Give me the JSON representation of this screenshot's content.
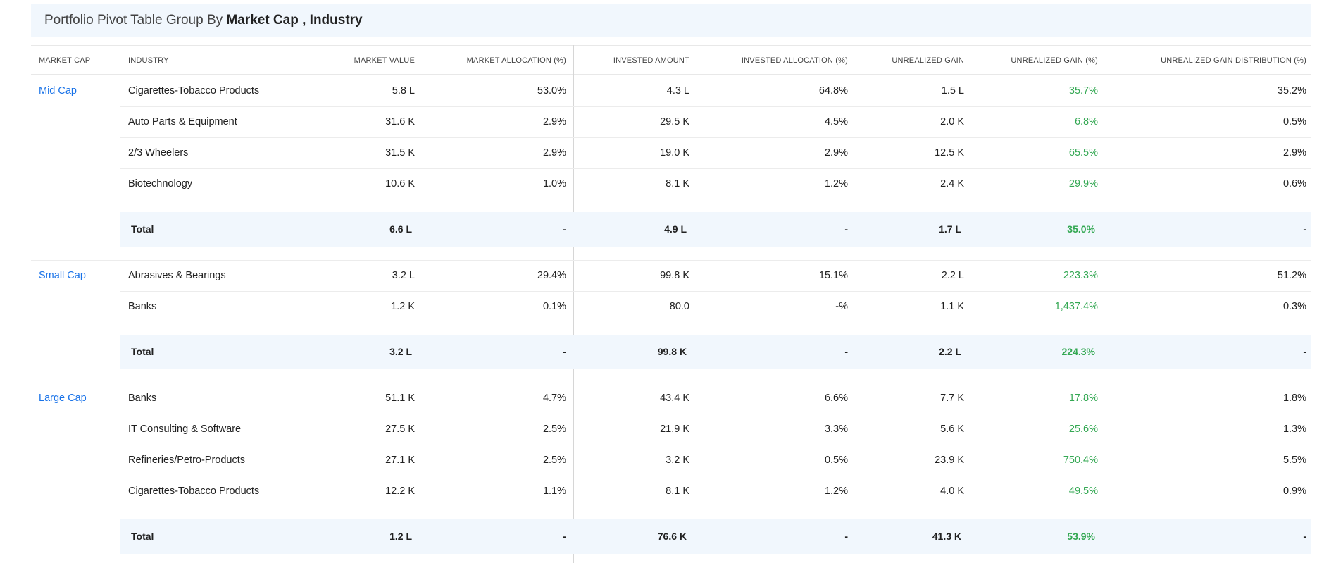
{
  "title": {
    "prefix": "Portfolio Pivot Table Group By",
    "group1": "Market Cap",
    "sep": ",",
    "group2": "Industry"
  },
  "columns": {
    "market_cap": "MARKET CAP",
    "industry": "INDUSTRY",
    "market_value": "MARKET VALUE",
    "market_allocation": "MARKET ALLOCATION (%)",
    "invested_amount": "INVESTED AMOUNT",
    "invested_allocation": "INVESTED ALLOCATION (%)",
    "unrealized_gain": "UNREALIZED GAIN",
    "unrealized_gain_pct": "UNREALIZED GAIN (%)",
    "unrealized_gain_dist": "UNREALIZED GAIN DISTRIBUTION (%)"
  },
  "colors": {
    "link": "#1a73e8",
    "gain": "#34a853",
    "total_bg": "#f1f7fd"
  },
  "groups": [
    {
      "name": "Mid Cap",
      "rows": [
        {
          "industry": "Cigarettes-Tobacco Products",
          "mv": "5.8 L",
          "ma": "53.0%",
          "ia": "4.3 L",
          "ial": "64.8%",
          "ug": "1.5 L",
          "ugp": "35.7%",
          "ugd": "35.2%"
        },
        {
          "industry": "Auto Parts & Equipment",
          "mv": "31.6 K",
          "ma": "2.9%",
          "ia": "29.5 K",
          "ial": "4.5%",
          "ug": "2.0 K",
          "ugp": "6.8%",
          "ugd": "0.5%"
        },
        {
          "industry": "2/3 Wheelers",
          "mv": "31.5 K",
          "ma": "2.9%",
          "ia": "19.0 K",
          "ial": "2.9%",
          "ug": "12.5 K",
          "ugp": "65.5%",
          "ugd": "2.9%"
        },
        {
          "industry": "Biotechnology",
          "mv": "10.6 K",
          "ma": "1.0%",
          "ia": "8.1 K",
          "ial": "1.2%",
          "ug": "2.4 K",
          "ugp": "29.9%",
          "ugd": "0.6%"
        }
      ],
      "total": {
        "label": "Total",
        "mv": "6.6 L",
        "ma": "-",
        "ia": "4.9 L",
        "ial": "-",
        "ug": "1.7 L",
        "ugp": "35.0%",
        "ugd": "-"
      }
    },
    {
      "name": "Small Cap",
      "rows": [
        {
          "industry": "Abrasives & Bearings",
          "mv": "3.2 L",
          "ma": "29.4%",
          "ia": "99.8 K",
          "ial": "15.1%",
          "ug": "2.2 L",
          "ugp": "223.3%",
          "ugd": "51.2%"
        },
        {
          "industry": "Banks",
          "mv": "1.2 K",
          "ma": "0.1%",
          "ia": "80.0",
          "ial": "-%",
          "ug": "1.1 K",
          "ugp": "1,437.4%",
          "ugd": "0.3%"
        }
      ],
      "total": {
        "label": "Total",
        "mv": "3.2 L",
        "ma": "-",
        "ia": "99.8 K",
        "ial": "-",
        "ug": "2.2 L",
        "ugp": "224.3%",
        "ugd": "-"
      }
    },
    {
      "name": "Large Cap",
      "rows": [
        {
          "industry": "Banks",
          "mv": "51.1 K",
          "ma": "4.7%",
          "ia": "43.4 K",
          "ial": "6.6%",
          "ug": "7.7 K",
          "ugp": "17.8%",
          "ugd": "1.8%"
        },
        {
          "industry": "IT Consulting & Software",
          "mv": "27.5 K",
          "ma": "2.5%",
          "ia": "21.9 K",
          "ial": "3.3%",
          "ug": "5.6 K",
          "ugp": "25.6%",
          "ugd": "1.3%"
        },
        {
          "industry": "Refineries/Petro-Products",
          "mv": "27.1 K",
          "ma": "2.5%",
          "ia": "3.2 K",
          "ial": "0.5%",
          "ug": "23.9 K",
          "ugp": "750.4%",
          "ugd": "5.5%"
        },
        {
          "industry": "Cigarettes-Tobacco Products",
          "mv": "12.2 K",
          "ma": "1.1%",
          "ia": "8.1 K",
          "ial": "1.2%",
          "ug": "4.0 K",
          "ugp": "49.5%",
          "ugd": "0.9%"
        }
      ],
      "total": {
        "label": "Total",
        "mv": "1.2 L",
        "ma": "-",
        "ia": "76.6 K",
        "ial": "-",
        "ug": "41.3 K",
        "ugp": "53.9%",
        "ugd": "-"
      }
    }
  ]
}
